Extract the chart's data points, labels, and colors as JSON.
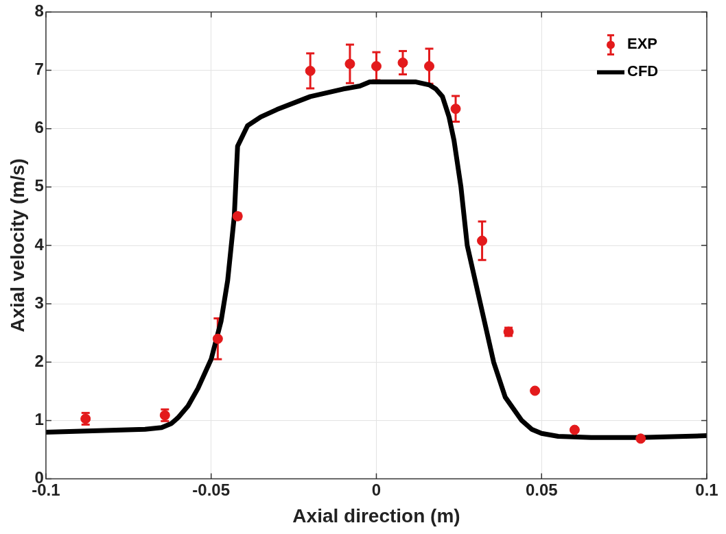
{
  "chart_data": {
    "type": "scatter",
    "xlabel": "Axial direction (m)",
    "ylabel": "Axial velocity (m/s)",
    "xlim": [
      -0.1,
      0.1
    ],
    "xticks": [
      -0.1,
      -0.05,
      0,
      0.05,
      0.1
    ],
    "ylim": [
      0,
      8
    ],
    "yticks": [
      0,
      1,
      2,
      3,
      4,
      5,
      6,
      7,
      8
    ],
    "grid": true,
    "legend": "top right",
    "series": [
      {
        "name": "EXP",
        "type": "scatter",
        "marker": "circle",
        "color": "#e31a1c",
        "x": [
          -0.088,
          -0.064,
          -0.048,
          -0.042,
          -0.02,
          -0.008,
          0,
          0.008,
          0.016,
          0.024,
          0.032,
          0.04,
          0.048,
          0.06,
          0.08
        ],
        "values": [
          1.03,
          1.09,
          2.4,
          4.5,
          6.99,
          7.11,
          7.07,
          7.13,
          7.07,
          6.34,
          4.08,
          2.52,
          1.51,
          0.84,
          0.69
        ],
        "errors": [
          0.1,
          0.1,
          0.35,
          0.05,
          0.3,
          0.33,
          0.24,
          0.2,
          0.3,
          0.22,
          0.33,
          0.07,
          null,
          null,
          null
        ]
      },
      {
        "name": "CFD",
        "type": "line",
        "marker": "none",
        "line_style": "solid",
        "color": "#000000",
        "x": [
          -0.1,
          -0.07,
          -0.065,
          -0.062,
          -0.06,
          -0.057,
          -0.054,
          -0.05,
          -0.047,
          -0.045,
          -0.043,
          -0.042,
          -0.039,
          -0.035,
          -0.03,
          -0.02,
          -0.01,
          -0.005,
          -0.002,
          0,
          0.012,
          0.016,
          0.018,
          0.02,
          0.022,
          0.0235,
          0.0256,
          0.0275,
          0.0315,
          0.0355,
          0.039,
          0.044,
          0.047,
          0.05,
          0.055,
          0.065,
          0.08,
          0.1
        ],
        "values": [
          0.8,
          0.85,
          0.88,
          0.95,
          1.05,
          1.25,
          1.55,
          2.05,
          2.7,
          3.4,
          4.5,
          5.7,
          6.05,
          6.2,
          6.33,
          6.55,
          6.68,
          6.73,
          6.8,
          6.8,
          6.8,
          6.75,
          6.68,
          6.55,
          6.2,
          5.8,
          5.0,
          4.0,
          3.0,
          2.0,
          1.4,
          1.0,
          0.85,
          0.78,
          0.73,
          0.71,
          0.71,
          0.74
        ]
      }
    ]
  }
}
